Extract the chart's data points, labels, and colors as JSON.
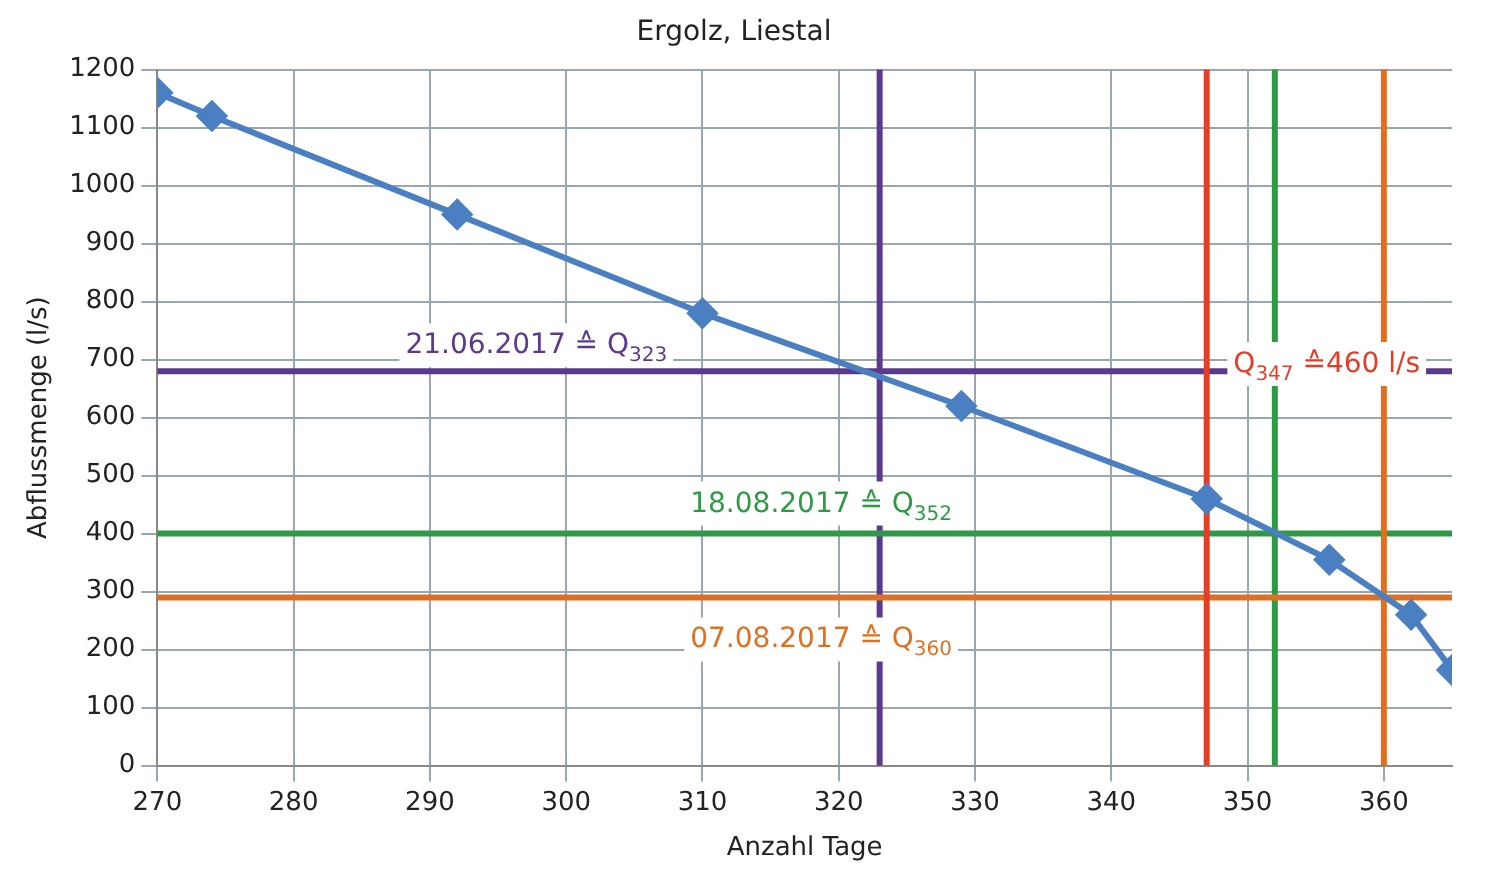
{
  "chart_data": {
    "type": "line",
    "title": "Ergolz, Liestal",
    "xlabel": "Anzahl Tage",
    "ylabel": "Abflussmenge (l/s)",
    "marker": "diamond",
    "series": [
      {
        "color": "#4a7fc1",
        "x": [
          270,
          274,
          292,
          310,
          329,
          347,
          356,
          362,
          365
        ],
        "values": [
          1160,
          1120,
          950,
          780,
          620,
          460,
          355,
          260,
          165
        ]
      }
    ],
    "xlim": [
      270,
      365
    ],
    "xticks": [
      270,
      280,
      290,
      300,
      310,
      320,
      330,
      340,
      350,
      360
    ],
    "ylim": [
      0,
      1200
    ],
    "yticks": [
      0,
      100,
      200,
      300,
      400,
      500,
      600,
      700,
      800,
      900,
      1000,
      1100,
      1200
    ],
    "grid": true,
    "ref_lines": [
      {
        "axis": "y",
        "value": 680,
        "color": "#5b3a8c",
        "label": "21.06.2017 ≙ Q$_{323}$"
      },
      {
        "axis": "x",
        "value": 323,
        "color": "#5b3a8c"
      },
      {
        "axis": "y",
        "value": 400,
        "color": "#2e9a45",
        "label": "18.08.2017 ≙ Q$_{352}$"
      },
      {
        "axis": "x",
        "value": 352,
        "color": "#2e9a45"
      },
      {
        "axis": "y",
        "value": 290,
        "color": "#e07020",
        "label": "07.08.2017 ≙ Q$_{360}$"
      },
      {
        "axis": "x",
        "value": 360,
        "color": "#e07020"
      },
      {
        "axis": "x",
        "value": 347,
        "color": "#e0402a",
        "label": "Q$_{347}$ ≙460 l/s"
      }
    ]
  }
}
